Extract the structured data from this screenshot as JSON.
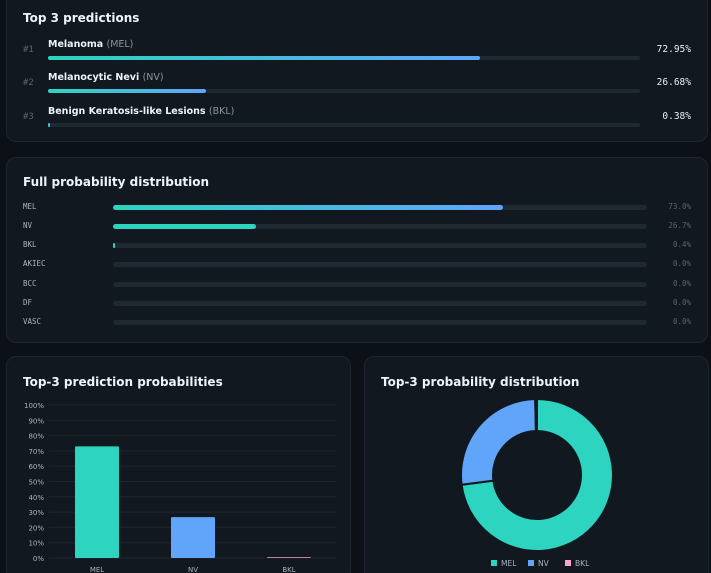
{
  "top3": {
    "title": "Top 3 predictions",
    "items": [
      {
        "rank": "#1",
        "name": "Melanoma",
        "code": "(MEL)",
        "percent": "72.95%",
        "value": 72.95
      },
      {
        "rank": "#2",
        "name": "Melanocytic Nevi",
        "code": "(NV)",
        "percent": "26.68%",
        "value": 26.68
      },
      {
        "rank": "#3",
        "name": "Benign Keratosis-like Lesions",
        "code": "(BKL)",
        "percent": "0.38%",
        "value": 0.38
      }
    ]
  },
  "distribution": {
    "title": "Full probability distribution",
    "rows": [
      {
        "label": "MEL",
        "percent": "73.0%",
        "value": 73.0
      },
      {
        "label": "NV",
        "percent": "26.7%",
        "value": 26.7
      },
      {
        "label": "BKL",
        "percent": "0.4%",
        "value": 0.4
      },
      {
        "label": "AKIEC",
        "percent": "0.0%",
        "value": 0.0
      },
      {
        "label": "BCC",
        "percent": "0.0%",
        "value": 0.0
      },
      {
        "label": "DF",
        "percent": "0.0%",
        "value": 0.0
      },
      {
        "label": "VASC",
        "percent": "0.0%",
        "value": 0.0
      }
    ]
  },
  "bar_card": {
    "title": "Top-3 prediction probabilities"
  },
  "donut_card": {
    "title": "Top-3 probability distribution"
  },
  "colors": {
    "teal": "#2dd4bf",
    "blue": "#60a5fa",
    "pink": "#f9a8c4",
    "track": "#1f2933"
  },
  "chart_data": [
    {
      "type": "bar",
      "title": "Top-3 prediction probabilities",
      "categories": [
        "MEL",
        "NV",
        "BKL"
      ],
      "values": [
        72.95,
        26.68,
        0.38
      ],
      "colors": [
        "#2dd4bf",
        "#60a5fa",
        "#f9a8c4"
      ],
      "ylim": [
        0,
        100
      ],
      "yticks": [
        "0%",
        "10%",
        "20%",
        "30%",
        "40%",
        "50%",
        "60%",
        "70%",
        "80%",
        "90%",
        "100%"
      ],
      "grid": true
    },
    {
      "type": "pie",
      "title": "Top-3 probability distribution",
      "labels": [
        "MEL",
        "NV",
        "BKL"
      ],
      "values": [
        72.95,
        26.68,
        0.38
      ],
      "colors": [
        "#2dd4bf",
        "#60a5fa",
        "#f9a8c4"
      ],
      "legend": "bottom"
    }
  ]
}
